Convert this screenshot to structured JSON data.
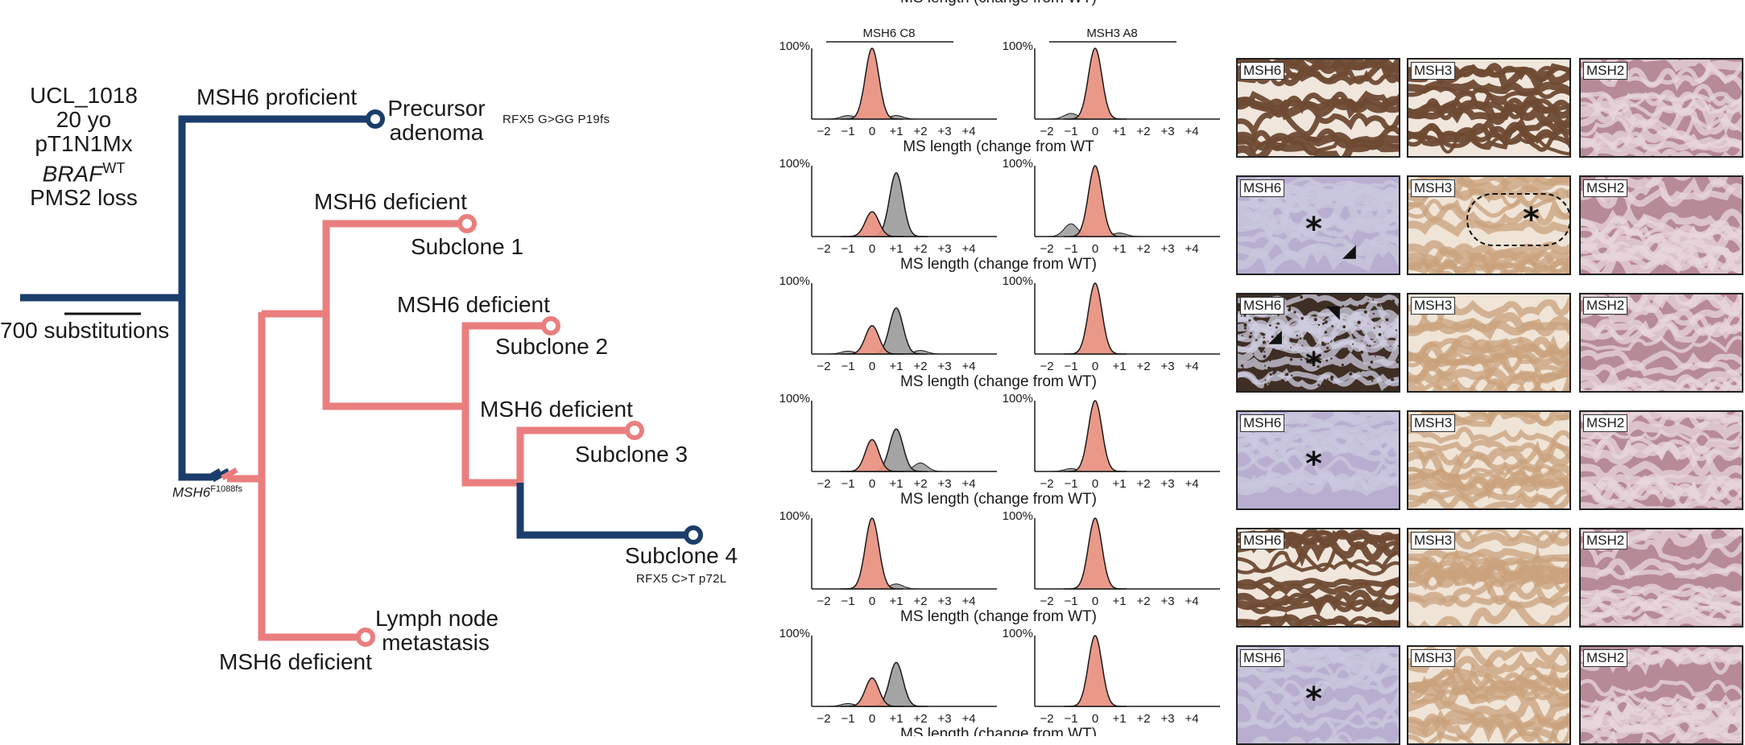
{
  "tree": {
    "header_lines": [
      "UCL_1018",
      "20 yo",
      "pT1N1Mx",
      "BRAF",
      "PMS2 loss"
    ],
    "braf_sup": "WT",
    "scale_label": "700 substitutions",
    "mutation_label": "MSH6",
    "mutation_sup": "F1088fs",
    "nodes": {
      "precursor": {
        "lines": [
          "Precursor",
          "adenoma"
        ],
        "mutation": "RFX5  G>GG  P19fs",
        "branch_label": "MSH6 proficient"
      },
      "subclone1": {
        "label": "Subclone 1",
        "branch_label": "MSH6 deficient"
      },
      "subclone2": {
        "label": "Subclone 2",
        "branch_label": "MSH6 deficient"
      },
      "subclone3": {
        "label": "Subclone 3",
        "branch_label": "MSH6 deficient"
      },
      "subclone4": {
        "label": "Subclone 4",
        "mutation": "RFX5 C>T p72L"
      },
      "lymph": {
        "lines": [
          "Lymph node",
          "metastasis"
        ],
        "branch_label": "MSH6 deficient"
      }
    },
    "colors": {
      "proficient": "#1b3d6b",
      "deficient": "#ea7e7e"
    }
  },
  "chart_data": {
    "type": "area",
    "top_axis_title": "MS length (change from WT)",
    "columns": [
      "MSH6 C8",
      "MSH3 A8"
    ],
    "xlabel": "MS length (change from WT)",
    "xlabel_first_row": "MS length (change from WT",
    "x_ticks": [
      "−2",
      "−1",
      "0",
      "+1",
      "+2",
      "+3",
      "+4"
    ],
    "y_tick": "100%",
    "xlim": [
      -2.5,
      4.5
    ],
    "ylim": [
      0,
      1
    ],
    "colors": {
      "wt": "#e8907f",
      "shift": "#9a9a9a",
      "line": "#1a1a1a"
    },
    "rows": [
      {
        "MSH6 C8": {
          "wt": [
            0,
            1.0
          ],
          "shift": [],
          "minor": [
            [
              -1,
              0.05
            ],
            [
              1,
              0.05
            ]
          ]
        },
        "MSH3 A8": {
          "wt": [
            0,
            1.0
          ],
          "shift": [],
          "minor": [
            [
              -1,
              0.08
            ]
          ]
        }
      },
      {
        "MSH6 C8": {
          "wt": [
            0,
            0.35
          ],
          "shift": [
            1,
            0.9
          ],
          "minor": []
        },
        "MSH3 A8": {
          "wt": [
            0,
            1.0
          ],
          "shift": [],
          "minor": [
            [
              -1,
              0.18
            ],
            [
              1,
              0.05
            ]
          ]
        }
      },
      {
        "MSH6 C8": {
          "wt": [
            0,
            0.4
          ],
          "shift": [
            1,
            0.65
          ],
          "minor": [
            [
              -1,
              0.04
            ],
            [
              2,
              0.05
            ]
          ]
        },
        "MSH3 A8": {
          "wt": [
            0,
            1.0
          ],
          "shift": [],
          "minor": []
        }
      },
      {
        "MSH6 C8": {
          "wt": [
            0,
            0.45
          ],
          "shift": [
            1,
            0.6
          ],
          "minor": [
            [
              2,
              0.12
            ]
          ]
        },
        "MSH3 A8": {
          "wt": [
            0,
            1.0
          ],
          "shift": [],
          "minor": [
            [
              -1,
              0.04
            ]
          ]
        }
      },
      {
        "MSH6 C8": {
          "wt": [
            0,
            1.0
          ],
          "shift": [],
          "minor": [
            [
              1,
              0.07
            ]
          ]
        },
        "MSH3 A8": {
          "wt": [
            0,
            1.0
          ],
          "shift": [],
          "minor": []
        }
      },
      {
        "MSH6 C8": {
          "wt": [
            0,
            0.4
          ],
          "shift": [
            1,
            0.62
          ],
          "minor": [
            [
              -1,
              0.04
            ]
          ]
        },
        "MSH3 A8": {
          "wt": [
            0,
            1.0
          ],
          "shift": [],
          "minor": []
        }
      }
    ]
  },
  "ihc": {
    "labels": [
      "MSH6",
      "MSH3",
      "MSH2"
    ],
    "rows": [
      {
        "msh6": "dark",
        "msh3": "dark",
        "msh2": "light",
        "marks": []
      },
      {
        "msh6": "blue",
        "msh3": "tan",
        "msh2": "light",
        "marks": [
          "ast",
          "arrow",
          "ast-dotted"
        ]
      },
      {
        "msh6": "speckled",
        "msh3": "tan",
        "msh2": "light",
        "marks": [
          "ast",
          "arrow",
          "arrow2"
        ]
      },
      {
        "msh6": "blue",
        "msh3": "tan",
        "msh2": "light",
        "marks": [
          "ast"
        ]
      },
      {
        "msh6": "dark",
        "msh3": "tan",
        "msh2": "light",
        "marks": []
      },
      {
        "msh6": "blue",
        "msh3": "tan",
        "msh2": "light",
        "marks": [
          "ast"
        ]
      }
    ],
    "colors": {
      "dark": [
        "#6e4a33",
        "#f0e6dc"
      ],
      "blue": [
        "#c9c8de",
        "#b8aed0"
      ],
      "speckled": [
        "#cfcde0",
        "#3e2e24"
      ],
      "tan": [
        "#c9a27c",
        "#efe4d6"
      ],
      "light": [
        "#e8d6dc",
        "#b78a98"
      ]
    }
  }
}
